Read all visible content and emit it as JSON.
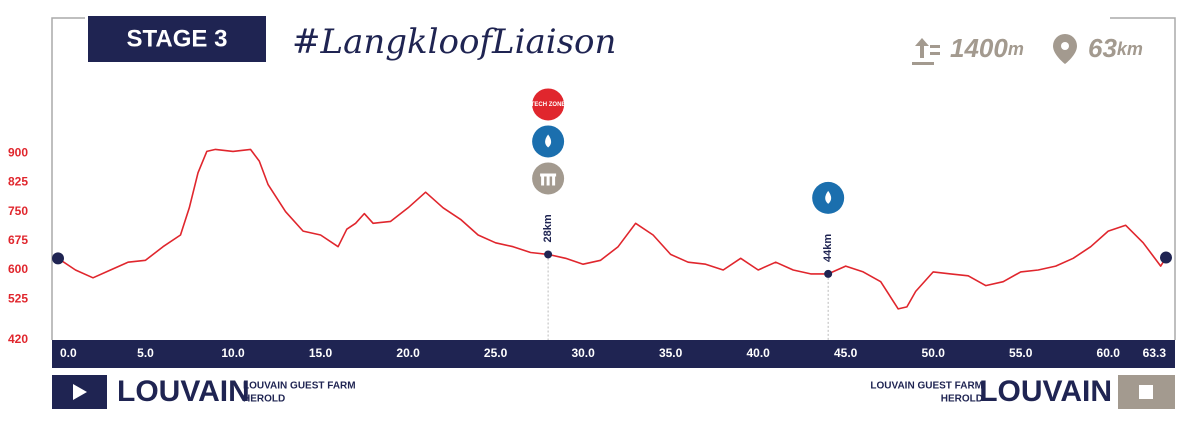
{
  "header": {
    "stage": "STAGE 3",
    "hashtag": "#LangkloofLiaison",
    "climb": "1400",
    "climb_unit": "m",
    "distance": "63",
    "distance_unit": "km"
  },
  "chart_data": {
    "type": "line",
    "color": "#e0262d",
    "x": [
      0,
      1,
      2,
      3,
      4,
      5,
      6,
      7,
      7.5,
      8,
      8.5,
      9,
      10,
      11,
      11.5,
      12,
      13,
      14,
      15,
      16,
      16.5,
      17,
      17.5,
      18,
      19,
      20,
      21,
      22,
      23,
      24,
      25,
      26,
      27,
      28,
      29,
      30,
      31,
      32,
      33,
      34,
      35,
      36,
      37,
      38,
      39,
      40,
      41,
      42,
      43,
      44,
      45,
      46,
      47,
      48,
      48.5,
      49,
      50,
      51,
      52,
      53,
      54,
      55,
      56,
      57,
      58,
      59,
      60,
      61,
      62,
      63,
      63.3
    ],
    "values": [
      630,
      600,
      580,
      600,
      620,
      625,
      660,
      690,
      760,
      850,
      905,
      910,
      905,
      910,
      880,
      820,
      750,
      700,
      690,
      660,
      705,
      720,
      745,
      720,
      725,
      760,
      800,
      760,
      730,
      690,
      670,
      660,
      645,
      640,
      630,
      615,
      625,
      660,
      720,
      690,
      640,
      620,
      615,
      600,
      630,
      600,
      620,
      600,
      590,
      590,
      610,
      595,
      570,
      500,
      505,
      545,
      595,
      590,
      585,
      560,
      570,
      595,
      600,
      610,
      630,
      660,
      700,
      715,
      670,
      610,
      632
    ],
    "xlim": [
      0,
      63.3
    ],
    "xticks": [
      {
        "value": 0,
        "label": "0.0"
      },
      {
        "value": 5,
        "label": "5.0"
      },
      {
        "value": 10,
        "label": "10.0"
      },
      {
        "value": 15,
        "label": "15.0"
      },
      {
        "value": 20,
        "label": "20.0"
      },
      {
        "value": 25,
        "label": "25.0"
      },
      {
        "value": 30,
        "label": "30.0"
      },
      {
        "value": 35,
        "label": "35.0"
      },
      {
        "value": 40,
        "label": "40.0"
      },
      {
        "value": 45,
        "label": "45.0"
      },
      {
        "value": 50,
        "label": "50.0"
      },
      {
        "value": 55,
        "label": "55.0"
      },
      {
        "value": 60,
        "label": "60.0"
      },
      {
        "value": 63.3,
        "label": "63.3"
      }
    ],
    "ylim": [
      420,
      960
    ],
    "yticks": [
      420,
      525,
      600,
      675,
      750,
      825,
      900
    ],
    "markers": [
      {
        "label": "28km",
        "x": 28,
        "icons": [
          "tech",
          "water",
          "feed"
        ],
        "tech_label": "TECH ZONE"
      },
      {
        "label": "44km",
        "x": 44,
        "icons": [
          "water"
        ]
      }
    ]
  },
  "footer": {
    "start": {
      "town": "LOUVAIN",
      "venue": "LOUVAIN GUEST FARM",
      "place": "HEROLD"
    },
    "finish": {
      "town": "LOUVAIN",
      "venue": "LOUVAIN GUEST FARM",
      "place": "HEROLD"
    }
  }
}
